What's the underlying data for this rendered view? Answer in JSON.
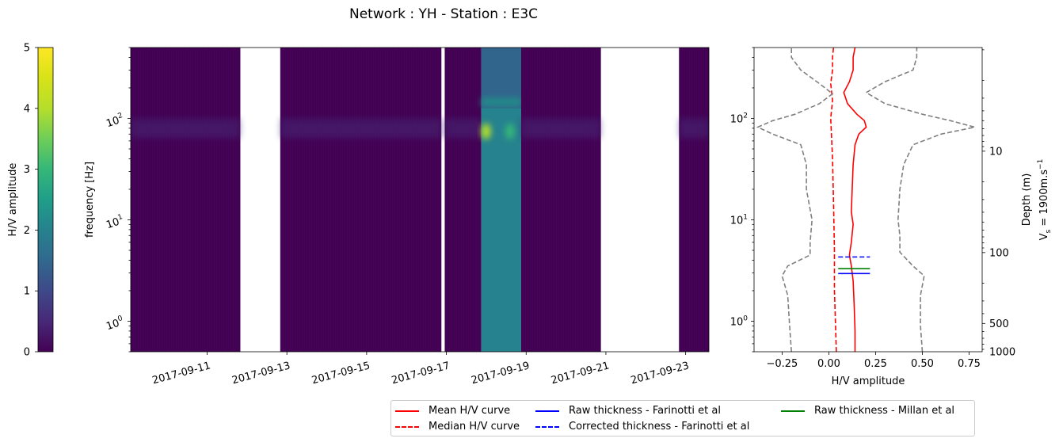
{
  "title": "Network : YH - Station : E3C",
  "colorbar": {
    "label": "H/V amplitude",
    "range": [
      0,
      5
    ],
    "ticks": [
      "0",
      "1",
      "2",
      "3",
      "4",
      "5"
    ],
    "colormap": "viridis"
  },
  "chart_data": [
    {
      "type": "heatmap",
      "ylabel": "frequency [Hz]",
      "yscale": "log",
      "ylim": [
        0.5,
        500
      ],
      "y_ticks": [
        {
          "value": 1,
          "base": "10",
          "exp": "0"
        },
        {
          "value": 10,
          "base": "10",
          "exp": "1"
        },
        {
          "value": 100,
          "base": "10",
          "exp": "2"
        }
      ],
      "xlim": [
        "2017-09-09T02:00",
        "2017-09-23T14:00"
      ],
      "x_ticks": [
        "2017-09-11",
        "2017-09-13",
        "2017-09-15",
        "2017-09-17",
        "2017-09-19",
        "2017-09-21",
        "2017-09-23"
      ],
      "data_segments": [
        {
          "start": "2017-09-09T02:00",
          "end": "2017-09-11T20:00",
          "level": 0.15
        },
        {
          "start": "2017-09-12T20:00",
          "end": "2017-09-16T21:00",
          "level": 0.15
        },
        {
          "start": "2017-09-16T23:00",
          "end": "2017-09-17T21:00",
          "level": 0.15
        },
        {
          "start": "2017-09-17T21:00",
          "end": "2017-09-18T21:00",
          "level": 1.9,
          "peak_frequency": 80,
          "peak_level": 3.2
        },
        {
          "start": "2017-09-18T21:00",
          "end": "2017-09-20T21:00",
          "level": 0.15
        },
        {
          "start": "2017-09-22T20:00",
          "end": "2017-09-23T14:00",
          "level": 0.15
        }
      ],
      "faint_band_frequency": 80
    },
    {
      "type": "line",
      "xlabel": "H/V amplitude",
      "xlim": [
        -0.4,
        0.82
      ],
      "x_ticks": [
        -0.25,
        0.0,
        0.25,
        0.5,
        0.75
      ],
      "x_tick_labels": [
        "−0.25",
        "0.00",
        "0.25",
        "0.50",
        "0.75"
      ],
      "yscale": "log",
      "ylim": [
        0.5,
        500
      ],
      "y_ticks": [
        {
          "value": 1,
          "base": "10",
          "exp": "0"
        },
        {
          "value": 10,
          "base": "10",
          "exp": "1"
        },
        {
          "value": 100,
          "base": "10",
          "exp": "2"
        }
      ],
      "secondary_ylabel": "Depth (m)",
      "secondary_ylabel_2": {
        "prefix": "V",
        "sub": "s",
        "mid": " = 1900m.s",
        "sup": "−1"
      },
      "vs": 1900,
      "depth_ticks": [
        10,
        100,
        500,
        1000
      ],
      "series": [
        {
          "name": "Mean H/V curve",
          "color": "#ff0000",
          "dash": "solid",
          "points": [
            [
              0.14,
              0.5
            ],
            [
              0.14,
              0.8
            ],
            [
              0.135,
              1.5
            ],
            [
              0.13,
              2.5
            ],
            [
              0.12,
              3.5
            ],
            [
              0.11,
              4.5
            ],
            [
              0.12,
              6
            ],
            [
              0.13,
              9
            ],
            [
              0.12,
              12
            ],
            [
              0.125,
              20
            ],
            [
              0.13,
              35
            ],
            [
              0.14,
              55
            ],
            [
              0.16,
              70
            ],
            [
              0.2,
              82
            ],
            [
              0.19,
              95
            ],
            [
              0.15,
              110
            ],
            [
              0.1,
              140
            ],
            [
              0.08,
              180
            ],
            [
              0.11,
              230
            ],
            [
              0.13,
              300
            ],
            [
              0.13,
              400
            ],
            [
              0.14,
              500
            ]
          ]
        },
        {
          "name": "Median H/V curve",
          "color": "#ff0000",
          "dash": "dashed",
          "points": [
            [
              0.04,
              0.5
            ],
            [
              0.035,
              1
            ],
            [
              0.03,
              2
            ],
            [
              0.03,
              5
            ],
            [
              0.025,
              15
            ],
            [
              0.02,
              40
            ],
            [
              0.01,
              100
            ],
            [
              0.02,
              150
            ],
            [
              0.01,
              220
            ],
            [
              0.02,
              300
            ],
            [
              0.02,
              400
            ],
            [
              0.025,
              500
            ]
          ]
        },
        {
          "name": "",
          "color": "#808080",
          "dash": "dashed",
          "points": [
            [
              -0.2,
              0.5
            ],
            [
              -0.21,
              0.9
            ],
            [
              -0.22,
              1.8
            ],
            [
              -0.25,
              2.8
            ],
            [
              -0.22,
              3.5
            ],
            [
              -0.1,
              4.5
            ],
            [
              -0.1,
              6
            ],
            [
              -0.09,
              10
            ],
            [
              -0.12,
              20
            ],
            [
              -0.12,
              35
            ],
            [
              -0.15,
              55
            ],
            [
              -0.3,
              70
            ],
            [
              -0.38,
              82
            ],
            [
              -0.3,
              95
            ],
            [
              -0.18,
              110
            ],
            [
              -0.05,
              140
            ],
            [
              0.02,
              175
            ],
            [
              -0.05,
              220
            ],
            [
              -0.15,
              300
            ],
            [
              -0.2,
              400
            ],
            [
              -0.2,
              500
            ]
          ]
        },
        {
          "name": "",
          "color": "#808080",
          "dash": "dashed",
          "points": [
            [
              0.5,
              0.5
            ],
            [
              0.49,
              0.9
            ],
            [
              0.49,
              1.8
            ],
            [
              0.51,
              2.8
            ],
            [
              0.45,
              3.5
            ],
            [
              0.38,
              4.8
            ],
            [
              0.38,
              7
            ],
            [
              0.37,
              10
            ],
            [
              0.38,
              20
            ],
            [
              0.4,
              35
            ],
            [
              0.45,
              55
            ],
            [
              0.6,
              70
            ],
            [
              0.78,
              82
            ],
            [
              0.65,
              95
            ],
            [
              0.5,
              110
            ],
            [
              0.3,
              140
            ],
            [
              0.2,
              180
            ],
            [
              0.3,
              230
            ],
            [
              0.45,
              300
            ],
            [
              0.47,
              400
            ],
            [
              0.47,
              500
            ]
          ]
        }
      ],
      "thickness_markers": [
        {
          "name": "Raw thickness - Farinotti et al",
          "color": "#0000ff",
          "dash": "solid",
          "frequency": 2.95,
          "x": [
            0.05,
            0.22
          ]
        },
        {
          "name": "Corrected thickness - Farinotti et al",
          "color": "#0000ff",
          "dash": "dashed",
          "frequency": 4.3,
          "x": [
            0.05,
            0.22
          ]
        },
        {
          "name": "Raw thickness - Millan et al",
          "color": "#008000",
          "dash": "solid",
          "frequency": 3.3,
          "x": [
            0.05,
            0.22
          ]
        }
      ]
    }
  ],
  "legend": [
    {
      "label": "Mean H/V curve",
      "color": "#ff0000",
      "dash": "solid"
    },
    {
      "label": "Median H/V curve",
      "color": "#ff0000",
      "dash": "dashed"
    },
    {
      "label": "Raw thickness - Farinotti et al",
      "color": "#0000ff",
      "dash": "solid"
    },
    {
      "label": "Corrected thickness - Farinotti et al",
      "color": "#0000ff",
      "dash": "dashed"
    },
    {
      "label": "Raw thickness - Millan et al",
      "color": "#008000",
      "dash": "solid"
    }
  ]
}
